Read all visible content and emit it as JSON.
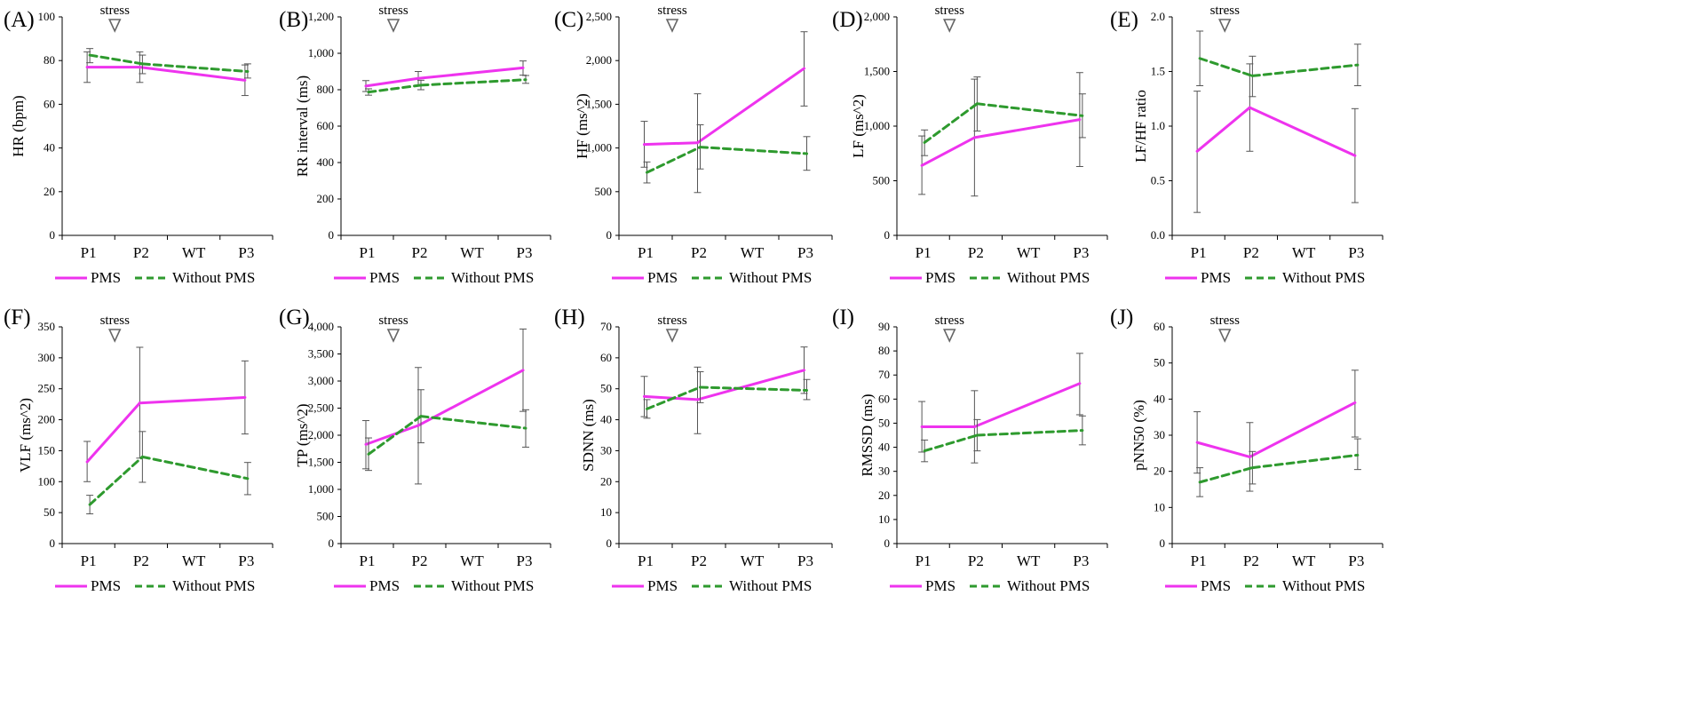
{
  "figure": {
    "legend": {
      "pms": "PMS",
      "without": "Without PMS"
    },
    "colors": {
      "pms": "#ee33ee",
      "without": "#2e9a2e",
      "axis": "#000000",
      "errorbar": "#555555",
      "marker": "#666666"
    }
  },
  "chart_data": [
    {
      "id": "A",
      "label": "(A)",
      "type": "line",
      "ylabel": "HR (bpm)",
      "ylim": [
        0,
        100
      ],
      "yticks": [
        0,
        20,
        40,
        60,
        80,
        100
      ],
      "categories": [
        "P1",
        "P2",
        "WT",
        "P3"
      ],
      "annotation": "stress",
      "series": [
        {
          "name": "PMS",
          "values": [
            77,
            77,
            null,
            71
          ],
          "err_low": [
            70,
            70,
            null,
            64
          ],
          "err_high": [
            84,
            84,
            null,
            78
          ]
        },
        {
          "name": "Without PMS",
          "values": [
            82.5,
            78.5,
            null,
            75
          ],
          "err_low": [
            79,
            74,
            null,
            72
          ],
          "err_high": [
            85.5,
            82.5,
            null,
            78.5
          ]
        }
      ]
    },
    {
      "id": "B",
      "label": "(B)",
      "type": "line",
      "ylabel": "RR interval (ms)",
      "ylim": [
        0,
        1200
      ],
      "yticks": [
        0,
        200,
        400,
        600,
        800,
        1000,
        1200
      ],
      "ytick_labels": [
        "0",
        "200",
        "400",
        "600",
        "800",
        "1,000",
        "1,200"
      ],
      "categories": [
        "P1",
        "P2",
        "WT",
        "P3"
      ],
      "annotation": "stress",
      "series": [
        {
          "name": "PMS",
          "values": [
            820,
            862,
            null,
            920
          ],
          "err_low": [
            790,
            825,
            null,
            880
          ],
          "err_high": [
            850,
            900,
            null,
            958
          ]
        },
        {
          "name": "Without PMS",
          "values": [
            787,
            825,
            null,
            855
          ],
          "err_low": [
            770,
            800,
            null,
            835
          ],
          "err_high": [
            805,
            852,
            null,
            878
          ]
        }
      ]
    },
    {
      "id": "C",
      "label": "(C)",
      "type": "line",
      "ylabel": "HF (ms^2)",
      "ylim": [
        0,
        2500
      ],
      "yticks": [
        0,
        500,
        1000,
        1500,
        2000,
        2500
      ],
      "ytick_labels": [
        "0",
        "500",
        "1,000",
        "1,500",
        "2,000",
        "2,500"
      ],
      "categories": [
        "P1",
        "P2",
        "WT",
        "P3"
      ],
      "annotation": "stress",
      "series": [
        {
          "name": "PMS",
          "values": [
            1040,
            1060,
            null,
            1910
          ],
          "err_low": [
            780,
            490,
            null,
            1480
          ],
          "err_high": [
            1305,
            1620,
            null,
            2330
          ]
        },
        {
          "name": "Without PMS",
          "values": [
            720,
            1010,
            null,
            935
          ],
          "err_low": [
            600,
            760,
            null,
            745
          ],
          "err_high": [
            840,
            1265,
            null,
            1130
          ]
        }
      ]
    },
    {
      "id": "D",
      "label": "(D)",
      "type": "line",
      "ylabel": "LF (ms^2)",
      "ylim": [
        0,
        2000
      ],
      "yticks": [
        0,
        500,
        1000,
        1500,
        2000
      ],
      "ytick_labels": [
        "0",
        "500",
        "1,000",
        "1,500",
        "2,000"
      ],
      "categories": [
        "P1",
        "P2",
        "WT",
        "P3"
      ],
      "annotation": "stress",
      "series": [
        {
          "name": "PMS",
          "values": [
            640,
            895,
            null,
            1060
          ],
          "err_low": [
            375,
            360,
            null,
            630
          ],
          "err_high": [
            910,
            1430,
            null,
            1490
          ]
        },
        {
          "name": "Without PMS",
          "values": [
            850,
            1205,
            null,
            1095
          ],
          "err_low": [
            730,
            955,
            null,
            895
          ],
          "err_high": [
            965,
            1450,
            null,
            1295
          ]
        }
      ]
    },
    {
      "id": "E",
      "label": "(E)",
      "type": "line",
      "ylabel": "LF/HF ratio",
      "ylim": [
        0,
        2
      ],
      "yticks": [
        0,
        0.5,
        1,
        1.5,
        2
      ],
      "ytick_labels": [
        "0.0",
        "0.5",
        "1.0",
        "1.5",
        "2.0"
      ],
      "categories": [
        "P1",
        "P2",
        "WT",
        "P3"
      ],
      "annotation": "stress",
      "series": [
        {
          "name": "PMS",
          "values": [
            0.77,
            1.17,
            null,
            0.73
          ],
          "err_low": [
            0.21,
            0.77,
            null,
            0.3
          ],
          "err_high": [
            1.32,
            1.57,
            null,
            1.16
          ]
        },
        {
          "name": "Without PMS",
          "values": [
            1.62,
            1.46,
            null,
            1.56
          ],
          "err_low": [
            1.37,
            1.27,
            null,
            1.37
          ],
          "err_high": [
            1.87,
            1.64,
            null,
            1.75
          ]
        }
      ]
    },
    {
      "id": "F",
      "label": "(F)",
      "type": "line",
      "ylabel": "VLF (ms^2)",
      "ylim": [
        0,
        350
      ],
      "yticks": [
        0,
        50,
        100,
        150,
        200,
        250,
        300,
        350
      ],
      "categories": [
        "P1",
        "P2",
        "WT",
        "P3"
      ],
      "annotation": "stress",
      "series": [
        {
          "name": "PMS",
          "values": [
            132,
            227,
            null,
            236
          ],
          "err_low": [
            100,
            138,
            null,
            177
          ],
          "err_high": [
            165,
            317,
            null,
            295
          ]
        },
        {
          "name": "Without PMS",
          "values": [
            63,
            140,
            null,
            105
          ],
          "err_low": [
            48,
            99,
            null,
            79
          ],
          "err_high": [
            78,
            181,
            null,
            131
          ]
        }
      ]
    },
    {
      "id": "G",
      "label": "(G)",
      "type": "line",
      "ylabel": "TP (ms^2)",
      "ylim": [
        0,
        4000
      ],
      "yticks": [
        0,
        500,
        1000,
        1500,
        2000,
        2500,
        3000,
        3500,
        4000
      ],
      "ytick_labels": [
        "0",
        "500",
        "1,000",
        "1,500",
        "2,000",
        "2,500",
        "3,000",
        "3,500",
        "4,000"
      ],
      "categories": [
        "P1",
        "P2",
        "WT",
        "P3"
      ],
      "annotation": "stress",
      "series": [
        {
          "name": "PMS",
          "values": [
            1830,
            2180,
            null,
            3200
          ],
          "err_low": [
            1380,
            1100,
            null,
            2440
          ],
          "err_high": [
            2270,
            3250,
            null,
            3960
          ]
        },
        {
          "name": "Without PMS",
          "values": [
            1650,
            2350,
            null,
            2130
          ],
          "err_low": [
            1350,
            1860,
            null,
            1780
          ],
          "err_high": [
            1950,
            2840,
            null,
            2470
          ]
        }
      ]
    },
    {
      "id": "H",
      "label": "(H)",
      "type": "line",
      "ylabel": "SDNN (ms)",
      "ylim": [
        0,
        70
      ],
      "yticks": [
        0,
        10,
        20,
        30,
        40,
        50,
        60,
        70
      ],
      "categories": [
        "P1",
        "P2",
        "WT",
        "P3"
      ],
      "annotation": "stress",
      "series": [
        {
          "name": "PMS",
          "values": [
            47.5,
            46.5,
            null,
            56
          ],
          "err_low": [
            41,
            35.5,
            null,
            48.5
          ],
          "err_high": [
            54,
            57,
            null,
            63.5
          ]
        },
        {
          "name": "Without PMS",
          "values": [
            43.5,
            50.5,
            null,
            49.5
          ],
          "err_low": [
            40.5,
            45.5,
            null,
            46.5
          ],
          "err_high": [
            46.5,
            55.5,
            null,
            53
          ]
        }
      ]
    },
    {
      "id": "I",
      "label": "(I)",
      "type": "line",
      "ylabel": "RMSSD (ms)",
      "ylim": [
        0,
        90
      ],
      "yticks": [
        0,
        10,
        20,
        30,
        40,
        50,
        60,
        70,
        80,
        90
      ],
      "categories": [
        "P1",
        "P2",
        "WT",
        "P3"
      ],
      "annotation": "stress",
      "series": [
        {
          "name": "PMS",
          "values": [
            48.5,
            48.5,
            null,
            66.5
          ],
          "err_low": [
            38,
            33.5,
            null,
            53.5
          ],
          "err_high": [
            59,
            63.5,
            null,
            79
          ]
        },
        {
          "name": "Without PMS",
          "values": [
            38.5,
            45,
            null,
            47
          ],
          "err_low": [
            34,
            38.5,
            null,
            41
          ],
          "err_high": [
            43,
            51.5,
            null,
            53
          ]
        }
      ]
    },
    {
      "id": "J",
      "label": "(J)",
      "type": "line",
      "ylabel": "pNN50 (%)",
      "ylim": [
        0,
        60
      ],
      "yticks": [
        0,
        10,
        20,
        30,
        40,
        50,
        60
      ],
      "categories": [
        "P1",
        "P2",
        "WT",
        "P3"
      ],
      "annotation": "stress",
      "series": [
        {
          "name": "PMS",
          "values": [
            28,
            24,
            null,
            39
          ],
          "err_low": [
            19.5,
            14.5,
            null,
            29.5
          ],
          "err_high": [
            36.5,
            33.5,
            null,
            48
          ]
        },
        {
          "name": "Without PMS",
          "values": [
            17,
            21,
            null,
            24.5
          ],
          "err_low": [
            13,
            16.5,
            null,
            20.5
          ],
          "err_high": [
            21,
            25.5,
            null,
            29
          ]
        }
      ]
    }
  ]
}
